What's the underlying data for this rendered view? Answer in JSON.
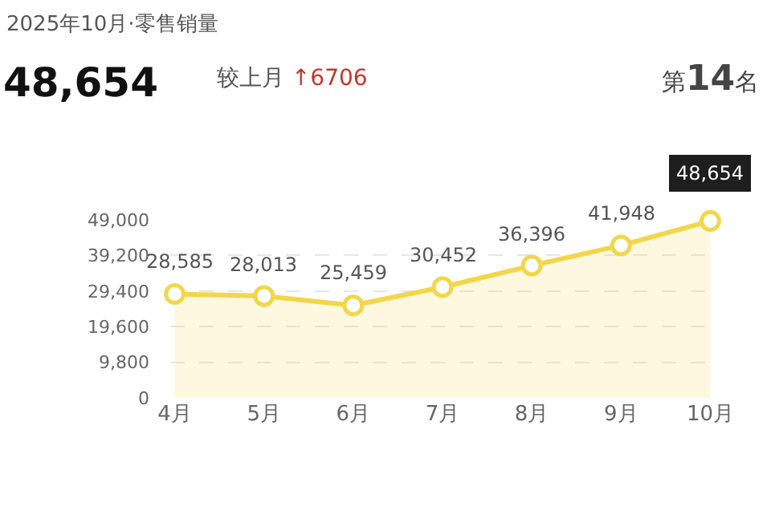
{
  "chart_data": {
    "type": "area",
    "title": "2025年10月·零售销量",
    "annotations": [
      "48,654",
      "较上月 ↑6706",
      "第14名"
    ],
    "categories": [
      "4月",
      "5月",
      "6月",
      "7月",
      "8月",
      "9月",
      "10月"
    ],
    "series": [
      {
        "color": "#f2d64b",
        "values": [
          28585,
          28013,
          25459,
          30452,
          36396,
          41948,
          48654
        ],
        "value_labels": [
          "28,585",
          "28,013",
          "25,459",
          "30,452",
          "36,396",
          "41,948",
          "48,654"
        ]
      }
    ],
    "ylim": [
      0,
      49000
    ],
    "yticks": [
      0,
      {
        "value": 9800,
        "label": "9,800"
      },
      {
        "value": 19600,
        "label": "19,600"
      },
      {
        "value": 29400,
        "label": "29,400"
      },
      {
        "value": 39200,
        "label": "39,200"
      },
      {
        "value": 49000,
        "label": "49,000"
      }
    ],
    "data_labels": true,
    "grid": "y",
    "legend": false,
    "marker": "circle",
    "line_style": "solid"
  }
}
